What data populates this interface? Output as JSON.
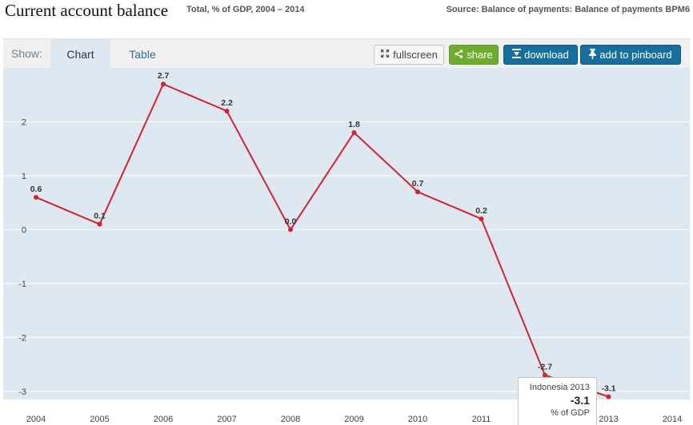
{
  "header": {
    "title": "Current account balance",
    "subtitle": "Total, % of GDP, 2004 – 2014",
    "source": "Source: Balance of payments: Balance of payments BPM6"
  },
  "toolbar": {
    "show_label": "Show:",
    "tabs": [
      "Chart",
      "Table"
    ],
    "fullscreen_label": "fullscreen",
    "share_label": "share",
    "download_label": "download",
    "pinboard_label": "add to pinboard"
  },
  "colors": {
    "line": "#d7222c",
    "plot_background": "#dde8f0",
    "share_button": "#6eac2c",
    "primary_button": "#156e9e"
  },
  "icons": {
    "fullscreen": "fullscreen-icon",
    "share": "share-icon",
    "download": "download-icon",
    "pinboard": "pin-icon"
  },
  "tooltip": {
    "title": "Indonesia 2013",
    "value": "-3.1",
    "unit": "% of GDP"
  },
  "chart_data": {
    "type": "line",
    "x": [
      "2004",
      "2005",
      "2006",
      "2007",
      "2008",
      "2009",
      "2010",
      "2011",
      "2012",
      "2013"
    ],
    "x_ticks": [
      "2004",
      "2005",
      "2006",
      "2007",
      "2008",
      "2009",
      "2010",
      "2011",
      "2012",
      "2013",
      "2014"
    ],
    "series": [
      {
        "values": [
          0.6,
          0.1,
          2.7,
          2.2,
          0.0,
          1.8,
          0.7,
          0.2,
          -2.7,
          -3.1
        ]
      }
    ],
    "data_labels": [
      "0.6",
      "0.1",
      "2.7",
      "2.2",
      "0.0",
      "1.8",
      "0.7",
      "0.2",
      "-2.7",
      "-3.1"
    ],
    "y_ticks": [
      -3,
      -2,
      -1,
      0,
      1,
      2
    ],
    "ylim": [
      -3.15,
      3.0
    ],
    "grid": true,
    "legend": "none"
  }
}
